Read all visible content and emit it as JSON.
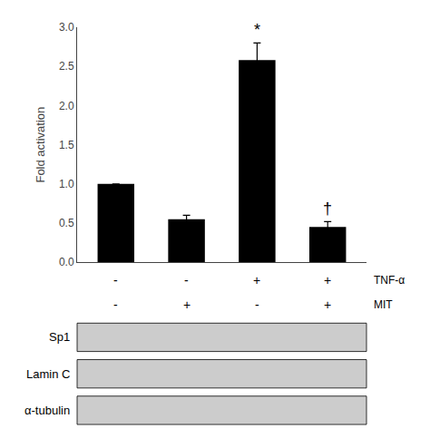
{
  "chart_data": {
    "type": "bar",
    "categories": [
      null,
      null,
      null,
      null
    ],
    "values": [
      1.0,
      0.55,
      2.58,
      0.45
    ],
    "errors": [
      0.0,
      0.05,
      0.22,
      0.07
    ],
    "color": "#000000",
    "ylabel": "Fold activation",
    "ylim": [
      0.0,
      3.0
    ],
    "yticks": [
      {
        "value": 0.0,
        "label": "0.0"
      },
      0.5,
      {
        "value": 1.0,
        "label": "1.0"
      },
      1.5,
      {
        "value": 2.0,
        "label": "2.0"
      },
      2.5,
      {
        "value": 3.0,
        "label": "3.0"
      }
    ],
    "annotations": [
      {
        "x": 2,
        "text": "*"
      },
      {
        "x": 3,
        "text": "†"
      }
    ],
    "factors": [
      {
        "name": "TNF-α",
        "labels": [
          "-",
          "-",
          "+",
          "+"
        ]
      },
      {
        "name": "MIT",
        "labels": [
          "-",
          "+",
          "-",
          "+"
        ]
      }
    ],
    "blots": [
      "Sp1",
      "Lamin C",
      "α-tubulin"
    ],
    "grid": false
  }
}
